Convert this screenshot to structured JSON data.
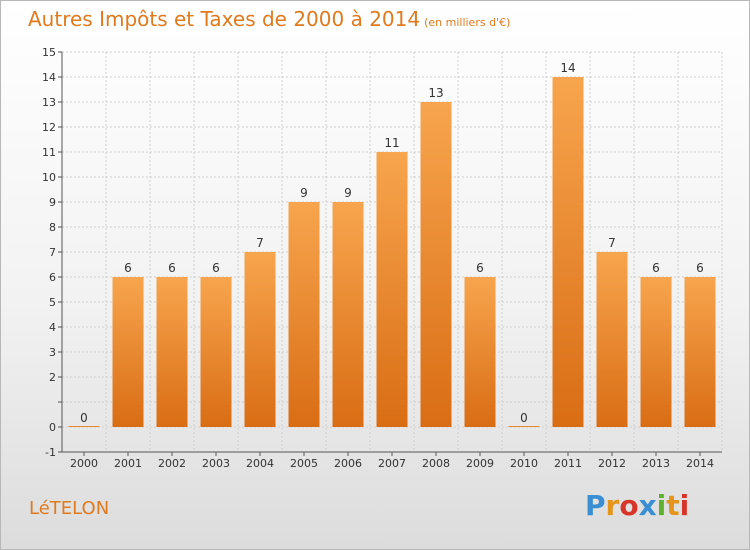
{
  "title": "Autres Impôts et Taxes de 2000 à 2014",
  "title_unit": "(en milliers d'€)",
  "commune": "LéTELON",
  "logo_letters": [
    "P",
    "r",
    "o",
    "x",
    "i",
    "t",
    "i"
  ],
  "logo_colors": [
    "#3a8fd4",
    "#e6951c",
    "#d8352a",
    "#3a8fd4",
    "#5fb22e",
    "#e6951c",
    "#d8352a"
  ],
  "colors": {
    "bar_light": "#f7a54e",
    "bar_dark": "#d96d14",
    "title": "#e07a1e"
  },
  "chart_data": {
    "type": "bar",
    "title": "Autres Impôts et Taxes de 2000 à 2014",
    "categories": [
      "2000",
      "2001",
      "2002",
      "2003",
      "2004",
      "2005",
      "2006",
      "2007",
      "2008",
      "2009",
      "2010",
      "2011",
      "2012",
      "2013",
      "2014"
    ],
    "values": [
      0,
      6,
      6,
      6,
      7,
      9,
      9,
      11,
      13,
      6,
      0,
      14,
      7,
      6,
      6
    ],
    "ylim": [
      -1,
      15
    ],
    "yticks": [
      -1,
      0,
      2,
      3,
      4,
      5,
      6,
      7,
      8,
      9,
      10,
      11,
      12,
      13,
      14,
      15
    ],
    "grid": true,
    "xlabel": "",
    "ylabel": ""
  }
}
